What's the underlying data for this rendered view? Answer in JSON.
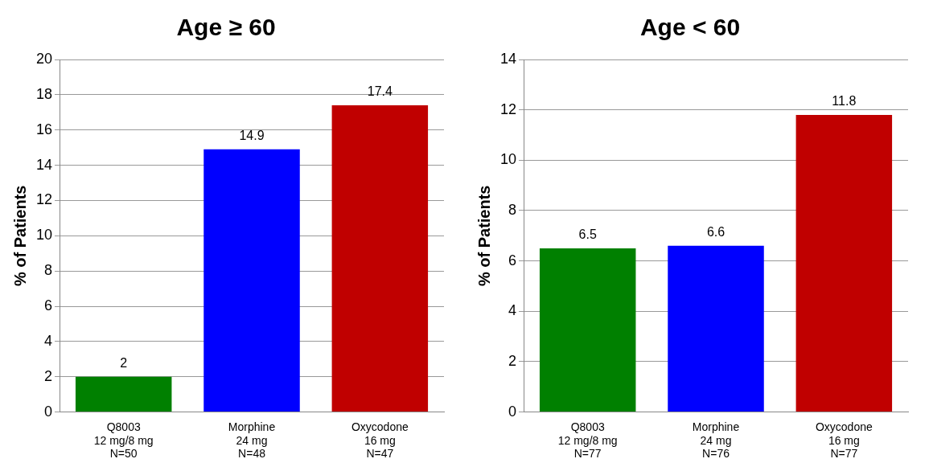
{
  "chart_data": [
    {
      "type": "bar",
      "title": "Age ≥ 60",
      "ylabel": "% of Patients",
      "categories": [
        "Q8003\n12 mg/8 mg\nN=50",
        "Morphine\n24 mg\nN=48",
        "Oxycodone\n16 mg\nN=47"
      ],
      "values": [
        2,
        14.9,
        17.4
      ],
      "colors": [
        "#008000",
        "#0000ff",
        "#c00000"
      ],
      "ylim": [
        0,
        20
      ],
      "yticks": [
        0,
        2,
        4,
        6,
        8,
        10,
        12,
        14,
        16,
        18,
        20
      ],
      "grid": "y",
      "data_labels": true
    },
    {
      "type": "bar",
      "title": "Age < 60",
      "ylabel": "% of Patients",
      "categories": [
        "Q8003\n12 mg/8 mg\nN=77",
        "Morphine\n24 mg\nN=76",
        "Oxycodone\n16 mg\nN=77"
      ],
      "values": [
        6.5,
        6.6,
        11.8
      ],
      "colors": [
        "#008000",
        "#0000ff",
        "#c00000"
      ],
      "ylim": [
        0,
        14
      ],
      "yticks": [
        0,
        2,
        4,
        6,
        8,
        10,
        12,
        14
      ],
      "grid": "y",
      "data_labels": true
    }
  ]
}
